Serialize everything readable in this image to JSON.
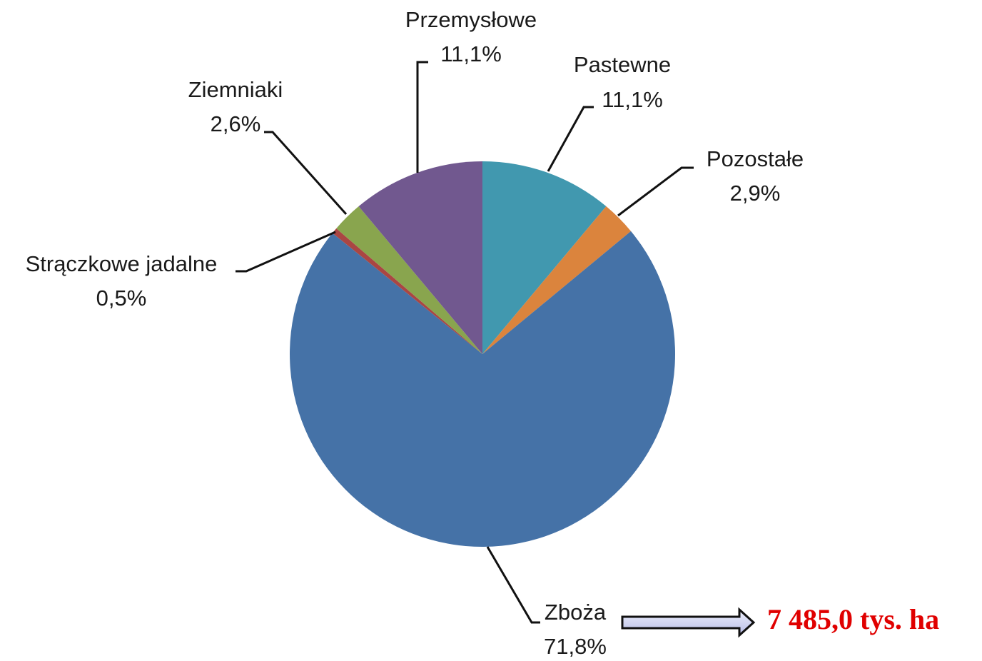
{
  "chart_data": {
    "type": "pie",
    "categories": [
      "Pastewne",
      "Pozostałe",
      "Zboża",
      "Strączkowe jadalne",
      "Ziemniaki",
      "Przemysłowe"
    ],
    "values": [
      11.1,
      2.9,
      71.8,
      0.5,
      2.6,
      11.1
    ],
    "value_labels": [
      "11,1%",
      "2,9%",
      "71,8%",
      "0,5%",
      "2,6%",
      "11,1%"
    ],
    "colors": [
      "#4198af",
      "#db843d",
      "#4572a7",
      "#aa4643",
      "#89a54e",
      "#71588f"
    ],
    "annotation": "7 485,0 tys. ha"
  }
}
